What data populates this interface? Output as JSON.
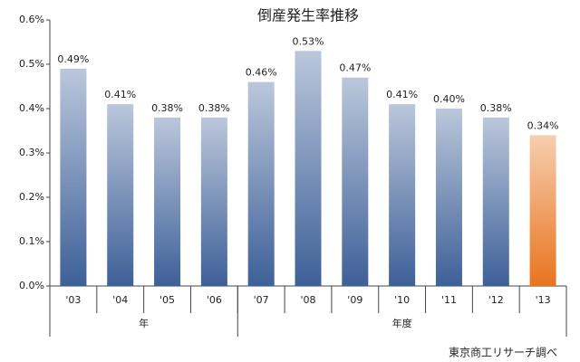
{
  "chart_data": {
    "type": "bar",
    "title": "倒産発生率推移",
    "categories": [
      "'03",
      "'04",
      "'05",
      "'06",
      "'07",
      "'08",
      "'09",
      "'10",
      "'11",
      "'12",
      "'13"
    ],
    "values": [
      0.49,
      0.41,
      0.38,
      0.38,
      0.46,
      0.53,
      0.47,
      0.41,
      0.4,
      0.38,
      0.34
    ],
    "value_labels": [
      "0.49%",
      "0.41%",
      "0.38%",
      "0.38%",
      "0.46%",
      "0.53%",
      "0.47%",
      "0.41%",
      "0.40%",
      "0.38%",
      "0.34%"
    ],
    "colors": [
      "#3d6098",
      "#3d6098",
      "#3d6098",
      "#3d6098",
      "#3d6098",
      "#3d6098",
      "#3d6098",
      "#3d6098",
      "#3d6098",
      "#3d6098",
      "#e8741e"
    ],
    "ylim": [
      0,
      0.6
    ],
    "yticks": [
      {
        "value": 0,
        "label": "0.0%"
      },
      {
        "value": 0.1,
        "label": "0.1%"
      },
      {
        "value": 0.2,
        "label": "0.2%"
      },
      {
        "value": 0.3,
        "label": "0.3%"
      },
      {
        "value": 0.4,
        "label": "0.4%"
      },
      {
        "value": 0.5,
        "label": "0.5%"
      },
      {
        "value": 0.6,
        "label": "0.6%"
      }
    ],
    "groups": [
      {
        "label": "年",
        "size": 4
      },
      {
        "label": "年度",
        "size": 7
      }
    ],
    "source": "東京商工リサーチ調べ"
  }
}
